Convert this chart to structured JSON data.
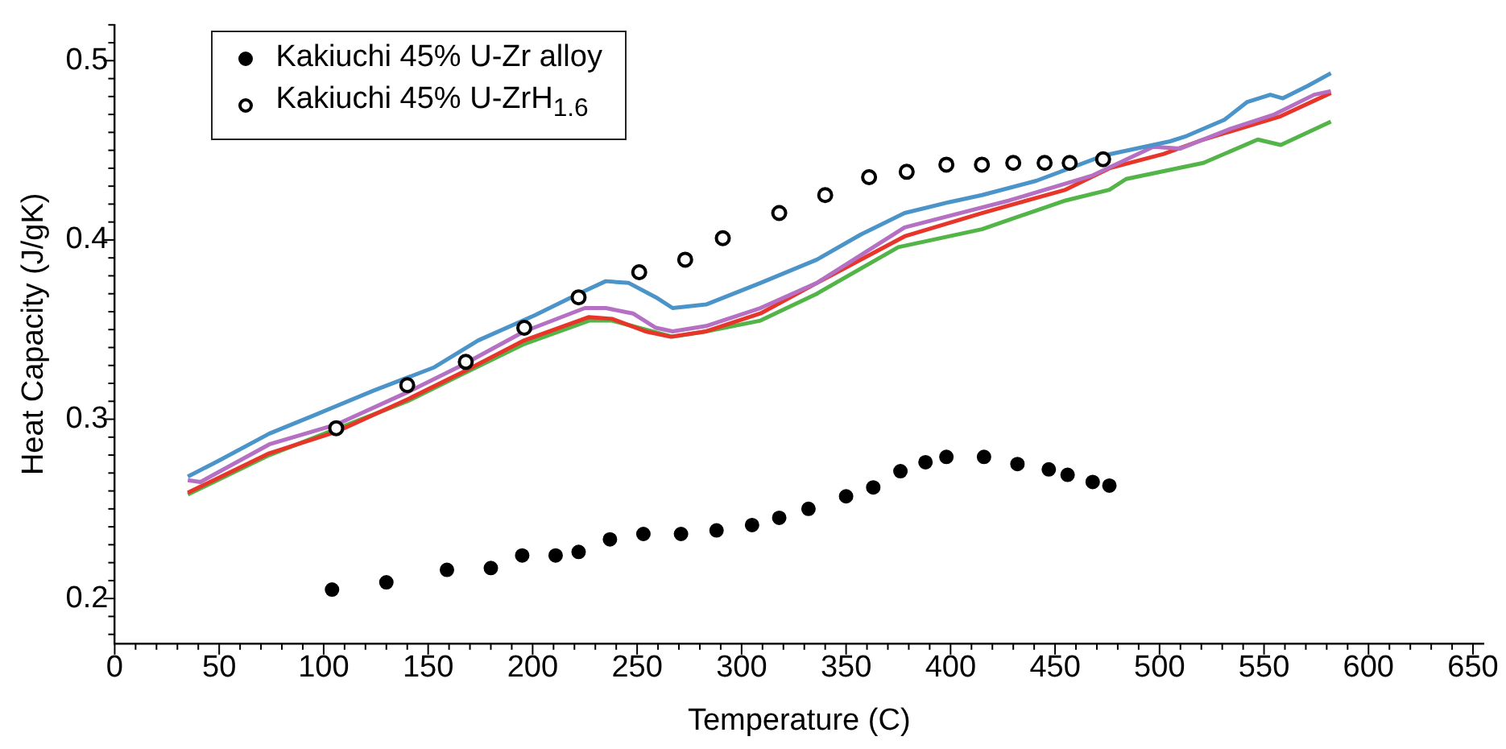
{
  "chart_data": {
    "type": "line",
    "xlabel": "Temperature (C)",
    "ylabel": "Heat Capacity (J/gK)",
    "xlim": [
      0,
      655
    ],
    "ylim": [
      0.175,
      0.52
    ],
    "xticks": [
      0,
      {
        "value": 10,
        "label": null
      },
      {
        "value": 20,
        "label": null
      },
      {
        "value": 30,
        "label": null
      },
      {
        "value": 40,
        "label": null
      },
      50,
      {
        "value": 60,
        "label": null
      },
      {
        "value": 70,
        "label": null
      },
      {
        "value": 80,
        "label": null
      },
      {
        "value": 90,
        "label": null
      },
      100,
      {
        "value": 110,
        "label": null
      },
      {
        "value": 120,
        "label": null
      },
      {
        "value": 130,
        "label": null
      },
      {
        "value": 140,
        "label": null
      },
      150,
      {
        "value": 160,
        "label": null
      },
      {
        "value": 170,
        "label": null
      },
      {
        "value": 180,
        "label": null
      },
      {
        "value": 190,
        "label": null
      },
      200,
      {
        "value": 210,
        "label": null
      },
      {
        "value": 220,
        "label": null
      },
      {
        "value": 230,
        "label": null
      },
      {
        "value": 240,
        "label": null
      },
      250,
      {
        "value": 260,
        "label": null
      },
      {
        "value": 270,
        "label": null
      },
      {
        "value": 280,
        "label": null
      },
      {
        "value": 290,
        "label": null
      },
      300,
      {
        "value": 310,
        "label": null
      },
      {
        "value": 320,
        "label": null
      },
      {
        "value": 330,
        "label": null
      },
      {
        "value": 340,
        "label": null
      },
      350,
      {
        "value": 360,
        "label": null
      },
      {
        "value": 370,
        "label": null
      },
      {
        "value": 380,
        "label": null
      },
      {
        "value": 390,
        "label": null
      },
      400,
      {
        "value": 410,
        "label": null
      },
      {
        "value": 420,
        "label": null
      },
      {
        "value": 430,
        "label": null
      },
      {
        "value": 440,
        "label": null
      },
      450,
      {
        "value": 460,
        "label": null
      },
      {
        "value": 470,
        "label": null
      },
      {
        "value": 480,
        "label": null
      },
      {
        "value": 490,
        "label": null
      },
      500,
      {
        "value": 510,
        "label": null
      },
      {
        "value": 520,
        "label": null
      },
      {
        "value": 530,
        "label": null
      },
      {
        "value": 540,
        "label": null
      },
      550,
      {
        "value": 560,
        "label": null
      },
      {
        "value": 570,
        "label": null
      },
      {
        "value": 580,
        "label": null
      },
      {
        "value": 590,
        "label": null
      },
      600,
      {
        "value": 610,
        "label": null
      },
      {
        "value": 620,
        "label": null
      },
      {
        "value": 630,
        "label": null
      },
      {
        "value": 640,
        "label": null
      },
      650
    ],
    "yticks": [
      {
        "value": 0.18,
        "label": null
      },
      {
        "value": 0.19,
        "label": null
      },
      {
        "value": 0.2,
        "label": "0.2"
      },
      {
        "value": 0.21,
        "label": null
      },
      {
        "value": 0.22,
        "label": null
      },
      {
        "value": 0.23,
        "label": null
      },
      {
        "value": 0.24,
        "label": null
      },
      {
        "value": 0.25,
        "label": null
      },
      {
        "value": 0.26,
        "label": null
      },
      {
        "value": 0.27,
        "label": null
      },
      {
        "value": 0.28,
        "label": null
      },
      {
        "value": 0.29,
        "label": null
      },
      {
        "value": 0.3,
        "label": "0.3"
      },
      {
        "value": 0.31,
        "label": null
      },
      {
        "value": 0.32,
        "label": null
      },
      {
        "value": 0.33,
        "label": null
      },
      {
        "value": 0.34,
        "label": null
      },
      {
        "value": 0.35,
        "label": null
      },
      {
        "value": 0.36,
        "label": null
      },
      {
        "value": 0.37,
        "label": null
      },
      {
        "value": 0.38,
        "label": null
      },
      {
        "value": 0.39,
        "label": null
      },
      {
        "value": 0.4,
        "label": "0.4"
      },
      {
        "value": 0.41,
        "label": null
      },
      {
        "value": 0.42,
        "label": null
      },
      {
        "value": 0.43,
        "label": null
      },
      {
        "value": 0.44,
        "label": null
      },
      {
        "value": 0.45,
        "label": null
      },
      {
        "value": 0.46,
        "label": null
      },
      {
        "value": 0.47,
        "label": null
      },
      {
        "value": 0.48,
        "label": null
      },
      {
        "value": 0.49,
        "label": null
      },
      {
        "value": 0.5,
        "label": "0.5"
      },
      {
        "value": 0.51,
        "label": null
      },
      {
        "value": 0.52,
        "label": null
      }
    ],
    "grid": false,
    "legend": "top left",
    "line_style": "solid",
    "series": [
      {
        "color": "#4b94c9",
        "marker": "none",
        "x": [
          35,
          50,
          74,
          95,
          124,
          153,
          174,
          201,
          222,
          235,
          246,
          259,
          267,
          283,
          309,
          336,
          357,
          378,
          399,
          415,
          441,
          473,
          505,
          513,
          531,
          542,
          553,
          559,
          571,
          582
        ],
        "values": [
          0.268,
          0.277,
          0.292,
          0.302,
          0.316,
          0.329,
          0.344,
          0.358,
          0.37,
          0.377,
          0.376,
          0.368,
          0.362,
          0.364,
          0.376,
          0.389,
          0.403,
          0.415,
          0.421,
          0.425,
          0.433,
          0.447,
          0.455,
          0.458,
          0.467,
          0.477,
          0.481,
          0.479,
          0.486,
          0.493
        ]
      },
      {
        "color": "#b56fc3",
        "marker": "none",
        "x": [
          35,
          41,
          74,
          106,
          140,
          166,
          196,
          225,
          235,
          248,
          259,
          267,
          283,
          309,
          336,
          378,
          428,
          468,
          497,
          510,
          534,
          555,
          574,
          582
        ],
        "values": [
          0.266,
          0.265,
          0.286,
          0.297,
          0.315,
          0.33,
          0.349,
          0.362,
          0.362,
          0.359,
          0.351,
          0.349,
          0.352,
          0.362,
          0.376,
          0.407,
          0.422,
          0.436,
          0.452,
          0.451,
          0.462,
          0.47,
          0.481,
          0.483
        ]
      },
      {
        "color": "#e8352a",
        "marker": "none",
        "x": [
          35,
          74,
          106,
          140,
          166,
          196,
          227,
          238,
          254,
          266,
          283,
          309,
          336,
          378,
          415,
          455,
          476,
          502,
          521,
          558,
          582
        ],
        "values": [
          0.259,
          0.281,
          0.293,
          0.311,
          0.326,
          0.344,
          0.357,
          0.356,
          0.349,
          0.346,
          0.349,
          0.359,
          0.376,
          0.402,
          0.415,
          0.428,
          0.44,
          0.448,
          0.456,
          0.469,
          0.482
        ]
      },
      {
        "color": "#53b447",
        "marker": "none",
        "x": [
          35,
          74,
          140,
          166,
          196,
          227,
          238,
          267,
          283,
          309,
          336,
          375,
          415,
          455,
          476,
          484,
          521,
          547,
          558,
          582
        ],
        "values": [
          0.258,
          0.28,
          0.31,
          0.325,
          0.342,
          0.355,
          0.355,
          0.346,
          0.349,
          0.355,
          0.37,
          0.396,
          0.406,
          0.422,
          0.428,
          0.434,
          0.443,
          0.456,
          0.453,
          0.466
        ]
      },
      {
        "type": "scatter",
        "name": "Kakiuchi 45% U-Zr alloy",
        "color": "#000000",
        "marker": "circle",
        "x": [
          104,
          130,
          159,
          180,
          195,
          211,
          222,
          237,
          253,
          271,
          288,
          305,
          318,
          332,
          350,
          363,
          376,
          388,
          398,
          416,
          432,
          447,
          456,
          468,
          476
        ],
        "values": [
          0.205,
          0.209,
          0.216,
          0.217,
          0.224,
          0.224,
          0.226,
          0.233,
          0.236,
          0.236,
          0.238,
          0.241,
          0.245,
          0.25,
          0.257,
          0.262,
          0.271,
          0.276,
          0.279,
          0.279,
          0.275,
          0.272,
          0.269,
          0.265,
          0.263
        ]
      },
      {
        "type": "scatter",
        "name": "Kakiuchi 45% U-ZrH$_{1.6}$",
        "color": "#000000",
        "marker": "open_circle",
        "x": [
          106,
          140,
          168,
          196,
          222,
          251,
          273,
          291,
          318,
          340,
          361,
          379,
          398,
          415,
          430,
          445,
          457,
          473
        ],
        "values": [
          0.295,
          0.319,
          0.332,
          0.351,
          0.368,
          0.382,
          0.389,
          0.401,
          0.415,
          0.425,
          0.435,
          0.438,
          0.442,
          0.442,
          0.443,
          0.443,
          0.443,
          0.445
        ]
      }
    ]
  }
}
